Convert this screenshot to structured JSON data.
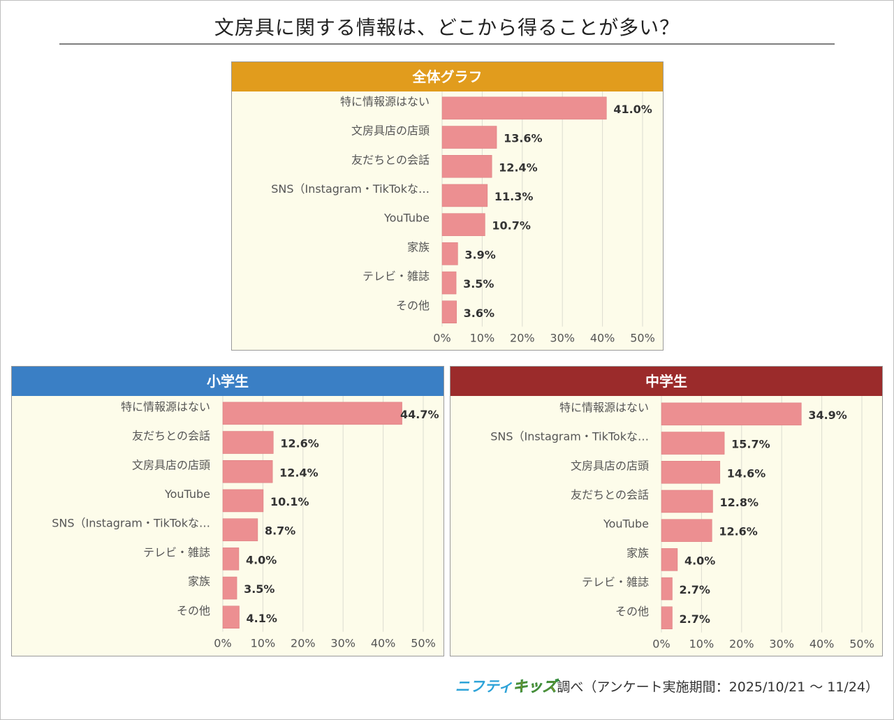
{
  "title": "文房具に関する情報は、どこから得ることが多い？",
  "footer": {
    "logo_part1": "ニフティ",
    "logo_part2": "キッズ",
    "source": "調べ（アンケート実施期間：2025/10/21 ～ 11/24）"
  },
  "colors": {
    "bar": "#ec8f91",
    "overall_header": "#e19c1d",
    "elementary_header": "#3a7fc5",
    "junior_header": "#9b2b2b",
    "panel_bg": "#fdfcea"
  },
  "chart_data": [
    {
      "type": "bar",
      "orientation": "horizontal",
      "title": "全体グラフ",
      "categories": [
        "特に情報源はない",
        "文房具店の店頭",
        "友だちとの会話",
        "SNS（Instagram・TikTokな…",
        "YouTube",
        "家族",
        "テレビ・雑誌",
        "その他"
      ],
      "values": [
        41.0,
        13.6,
        12.4,
        11.3,
        10.7,
        3.9,
        3.5,
        3.6
      ],
      "value_labels": [
        "41.0%",
        "13.6%",
        "12.4%",
        "11.3%",
        "10.7%",
        "3.9%",
        "3.5%",
        "3.6%"
      ],
      "xlim": [
        0,
        50
      ],
      "xticks": [
        "0%",
        "10%",
        "20%",
        "30%",
        "40%",
        "50%"
      ],
      "grid": true
    },
    {
      "type": "bar",
      "orientation": "horizontal",
      "title": "小学生",
      "categories": [
        "特に情報源はない",
        "友だちとの会話",
        "文房具店の店頭",
        "YouTube",
        "SNS（Instagram・TikTokな…",
        "テレビ・雑誌",
        "家族",
        "その他"
      ],
      "values": [
        44.7,
        12.6,
        12.4,
        10.1,
        8.7,
        4.0,
        3.5,
        4.1
      ],
      "value_labels": [
        "44.7%",
        "12.6%",
        "12.4%",
        "10.1%",
        "8.7%",
        "4.0%",
        "3.5%",
        "4.1%"
      ],
      "xlim": [
        0,
        50
      ],
      "xticks": [
        "0%",
        "10%",
        "20%",
        "30%",
        "40%",
        "50%"
      ],
      "grid": true
    },
    {
      "type": "bar",
      "orientation": "horizontal",
      "title": "中学生",
      "categories": [
        "特に情報源はない",
        "SNS（Instagram・TikTokな…",
        "文房具店の店頭",
        "友だちとの会話",
        "YouTube",
        "家族",
        "テレビ・雑誌",
        "その他"
      ],
      "values": [
        34.9,
        15.7,
        14.6,
        12.8,
        12.6,
        4.0,
        2.7,
        2.7
      ],
      "value_labels": [
        "34.9%",
        "15.7%",
        "14.6%",
        "12.8%",
        "12.6%",
        "4.0%",
        "2.7%",
        "2.7%"
      ],
      "xlim": [
        0,
        50
      ],
      "xticks": [
        "0%",
        "10%",
        "20%",
        "30%",
        "40%",
        "50%"
      ],
      "grid": true
    }
  ]
}
